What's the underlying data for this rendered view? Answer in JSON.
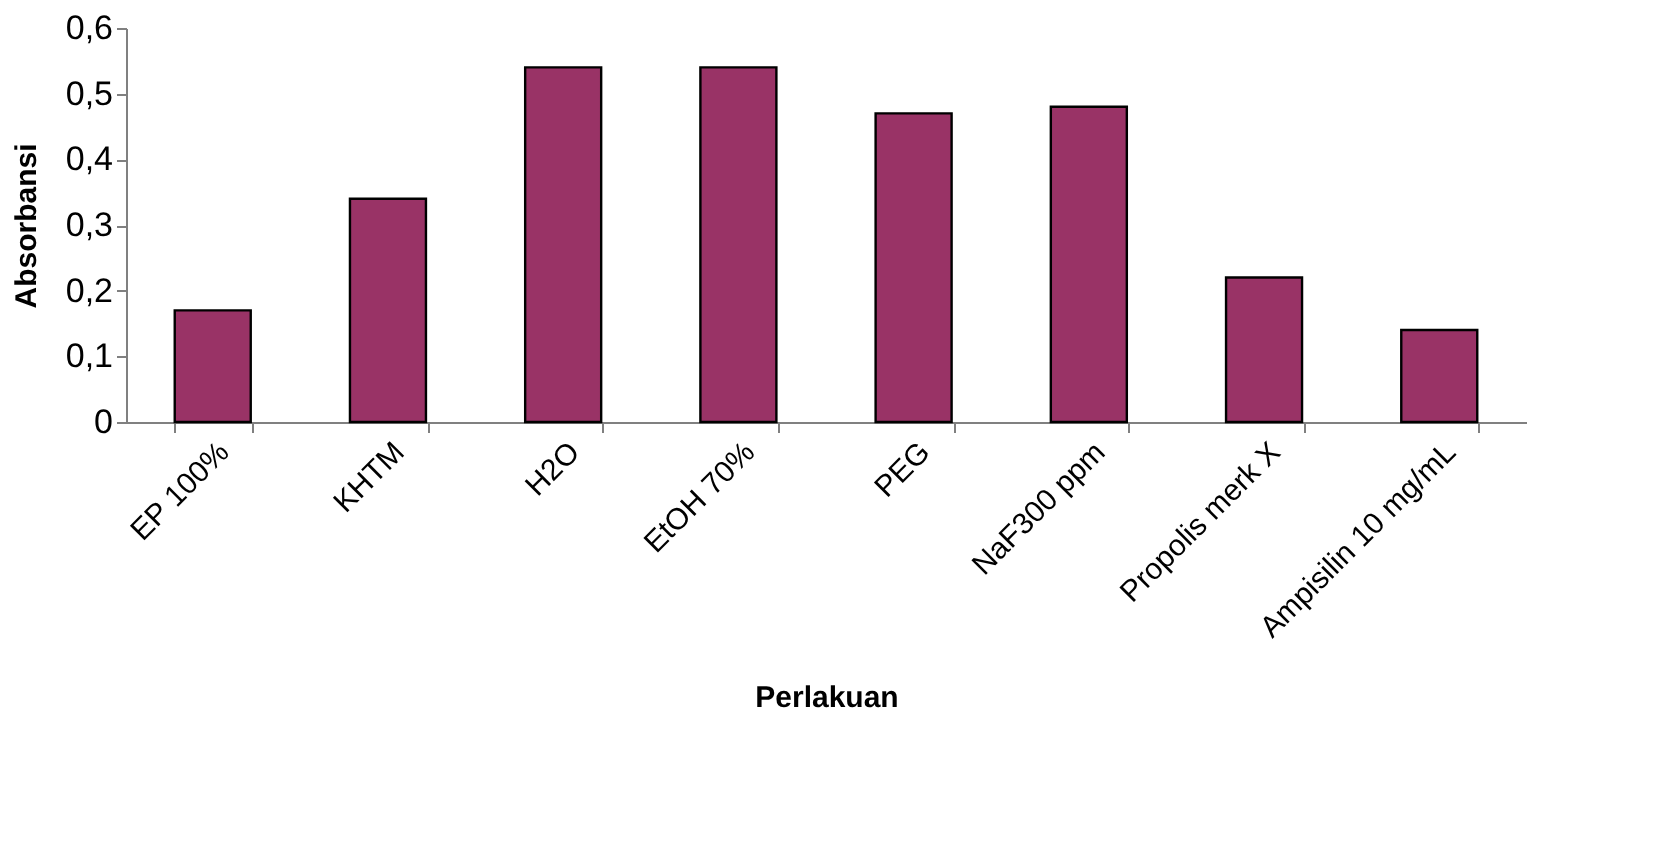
{
  "chart_data": {
    "type": "bar",
    "xlabel": "Perlakuan",
    "ylabel": "Absorbansi",
    "categories": [
      "EP 100%",
      "KHTM",
      "H2O",
      "EtOH 70%",
      "PEG",
      "NaF300 ppm",
      "Propolis merk X",
      "Ampisilin 10 mg/mL"
    ],
    "values": [
      0.17,
      0.34,
      0.54,
      0.54,
      0.47,
      0.48,
      0.22,
      0.14
    ],
    "color": "#993366",
    "ylim": [
      0,
      0.6
    ],
    "yticks": [
      0,
      {
        "value": 0.1,
        "label": "0,1"
      },
      {
        "value": 0.2,
        "label": "0,2"
      },
      {
        "value": 0.3,
        "label": "0,3"
      },
      {
        "value": 0.4,
        "label": "0,4"
      },
      {
        "value": 0.5,
        "label": "0,5"
      },
      {
        "value": 0.6,
        "label": "0,6"
      }
    ],
    "grid": false
  }
}
